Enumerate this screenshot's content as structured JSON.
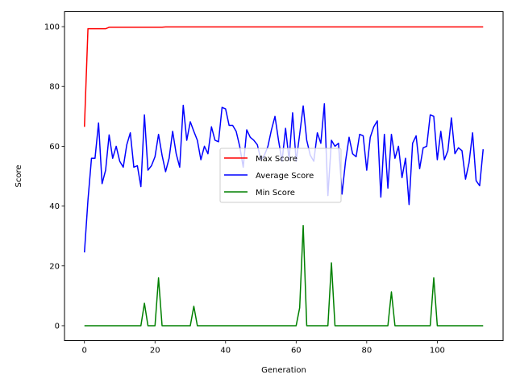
{
  "chart_data": {
    "type": "line",
    "title": "",
    "xlabel": "Generation",
    "ylabel": "Score",
    "xlim": [
      -5.65,
      118.65
    ],
    "ylim": [
      -5.0,
      105.0
    ],
    "xticks": [
      0,
      20,
      40,
      60,
      80,
      100
    ],
    "yticks": [
      0,
      20,
      40,
      60,
      80,
      100
    ],
    "grid": false,
    "legend_position": "center",
    "x": [
      0,
      1,
      2,
      3,
      4,
      5,
      6,
      7,
      8,
      9,
      10,
      11,
      12,
      13,
      14,
      15,
      16,
      17,
      18,
      19,
      20,
      21,
      22,
      23,
      24,
      25,
      26,
      27,
      28,
      29,
      30,
      31,
      32,
      33,
      34,
      35,
      36,
      37,
      38,
      39,
      40,
      41,
      42,
      43,
      44,
      45,
      46,
      47,
      48,
      49,
      50,
      51,
      52,
      53,
      54,
      55,
      56,
      57,
      58,
      59,
      60,
      61,
      62,
      63,
      64,
      65,
      66,
      67,
      68,
      69,
      70,
      71,
      72,
      73,
      74,
      75,
      76,
      77,
      78,
      79,
      80,
      81,
      82,
      83,
      84,
      85,
      86,
      87,
      88,
      89,
      90,
      91,
      92,
      93,
      94,
      95,
      96,
      97,
      98,
      99,
      100,
      101,
      102,
      103,
      104,
      105,
      106,
      107,
      108,
      109,
      110,
      111,
      112,
      113
    ],
    "series": [
      {
        "name": "Max Score",
        "color": "#ff0000",
        "values": [
          66.5,
          99.3,
          99.3,
          99.3,
          99.3,
          99.3,
          99.3,
          99.8,
          99.8,
          99.8,
          99.8,
          99.8,
          99.8,
          99.8,
          99.8,
          99.8,
          99.8,
          99.8,
          99.8,
          99.8,
          99.8,
          99.8,
          99.8,
          99.9,
          99.9,
          99.9,
          99.9,
          99.9,
          99.9,
          99.9,
          99.9,
          99.9,
          99.9,
          99.9,
          99.9,
          99.9,
          99.9,
          99.9,
          99.9,
          99.9,
          99.9,
          99.9,
          99.9,
          99.9,
          99.9,
          99.9,
          99.9,
          99.9,
          99.9,
          99.9,
          99.9,
          99.9,
          99.9,
          99.9,
          99.9,
          99.9,
          99.9,
          99.9,
          99.9,
          99.9,
          99.9,
          99.9,
          99.9,
          99.9,
          99.9,
          99.9,
          99.9,
          99.9,
          99.9,
          99.9,
          99.9,
          99.9,
          99.9,
          99.9,
          99.9,
          99.9,
          99.9,
          99.9,
          99.9,
          99.9,
          99.9,
          99.9,
          99.9,
          99.9,
          99.9,
          99.9,
          99.9,
          99.9,
          99.9,
          99.9,
          99.9,
          99.9,
          99.9,
          99.9,
          99.9,
          99.9,
          99.9,
          99.9,
          99.9,
          99.9,
          99.9,
          99.9,
          99.9,
          99.9,
          99.9,
          99.9,
          99.9,
          99.9,
          99.9,
          99.9,
          99.9,
          99.9,
          99.9,
          99.9
        ]
      },
      {
        "name": "Average Score",
        "color": "#0000ff",
        "values": [
          24.5,
          42.0,
          56.0,
          56.0,
          67.8,
          47.5,
          52.0,
          63.8,
          56.0,
          60.0,
          55.0,
          53.0,
          60.5,
          64.5,
          53.0,
          53.5,
          46.5,
          70.5,
          52.0,
          53.5,
          56.5,
          64.0,
          57.0,
          51.5,
          56.0,
          65.0,
          57.5,
          53.0,
          73.7,
          62.0,
          68.2,
          65.0,
          62.0,
          55.5,
          60.0,
          57.5,
          66.5,
          62.0,
          61.5,
          73.0,
          72.5,
          67.0,
          67.0,
          65.0,
          60.0,
          53.0,
          65.5,
          63.0,
          62.0,
          60.5,
          55.5,
          57.0,
          60.0,
          65.5,
          70.0,
          62.0,
          55.0,
          66.0,
          55.5,
          71.2,
          55.0,
          64.0,
          73.5,
          62.0,
          57.0,
          55.0,
          64.5,
          61.0,
          74.2,
          43.5,
          62.0,
          60.0,
          61.0,
          44.0,
          55.0,
          63.0,
          57.5,
          56.5,
          64.0,
          63.5,
          52.0,
          63.0,
          66.5,
          68.5,
          43.0,
          64.0,
          46.0,
          64.0,
          56.0,
          60.0,
          49.5,
          56.0,
          40.5,
          61.0,
          63.5,
          52.5,
          59.5,
          60.0,
          70.5,
          70.0,
          55.5,
          65.0,
          55.5,
          58.5,
          69.5,
          57.5,
          59.5,
          58.5,
          49.0,
          54.5,
          64.5,
          48.5,
          46.8,
          59.0
        ]
      },
      {
        "name": "Min Score",
        "color": "#008000",
        "values": [
          0,
          0,
          0,
          0,
          0,
          0,
          0,
          0,
          0,
          0,
          0,
          0,
          0,
          0,
          0,
          0,
          0,
          7.5,
          0,
          0,
          0,
          16.0,
          0,
          0,
          0,
          0,
          0,
          0,
          0,
          0,
          0,
          6.5,
          0,
          0,
          0,
          0,
          0,
          0,
          0,
          0,
          0,
          0,
          0,
          0,
          0,
          0,
          0,
          0,
          0,
          0,
          0,
          0,
          0,
          0,
          0,
          0,
          0,
          0,
          0,
          0,
          0,
          6.0,
          33.5,
          0,
          0,
          0,
          0,
          0,
          0,
          0,
          21.0,
          0,
          0,
          0,
          0,
          0,
          0,
          0,
          0,
          0,
          0,
          0,
          0,
          0,
          0,
          0,
          0,
          11.3,
          0,
          0,
          0,
          0,
          0,
          0,
          0,
          0,
          0,
          0,
          0,
          16.0,
          0,
          0,
          0,
          0,
          0,
          0,
          0,
          0,
          0,
          0,
          0,
          0,
          0,
          0
        ]
      }
    ]
  }
}
